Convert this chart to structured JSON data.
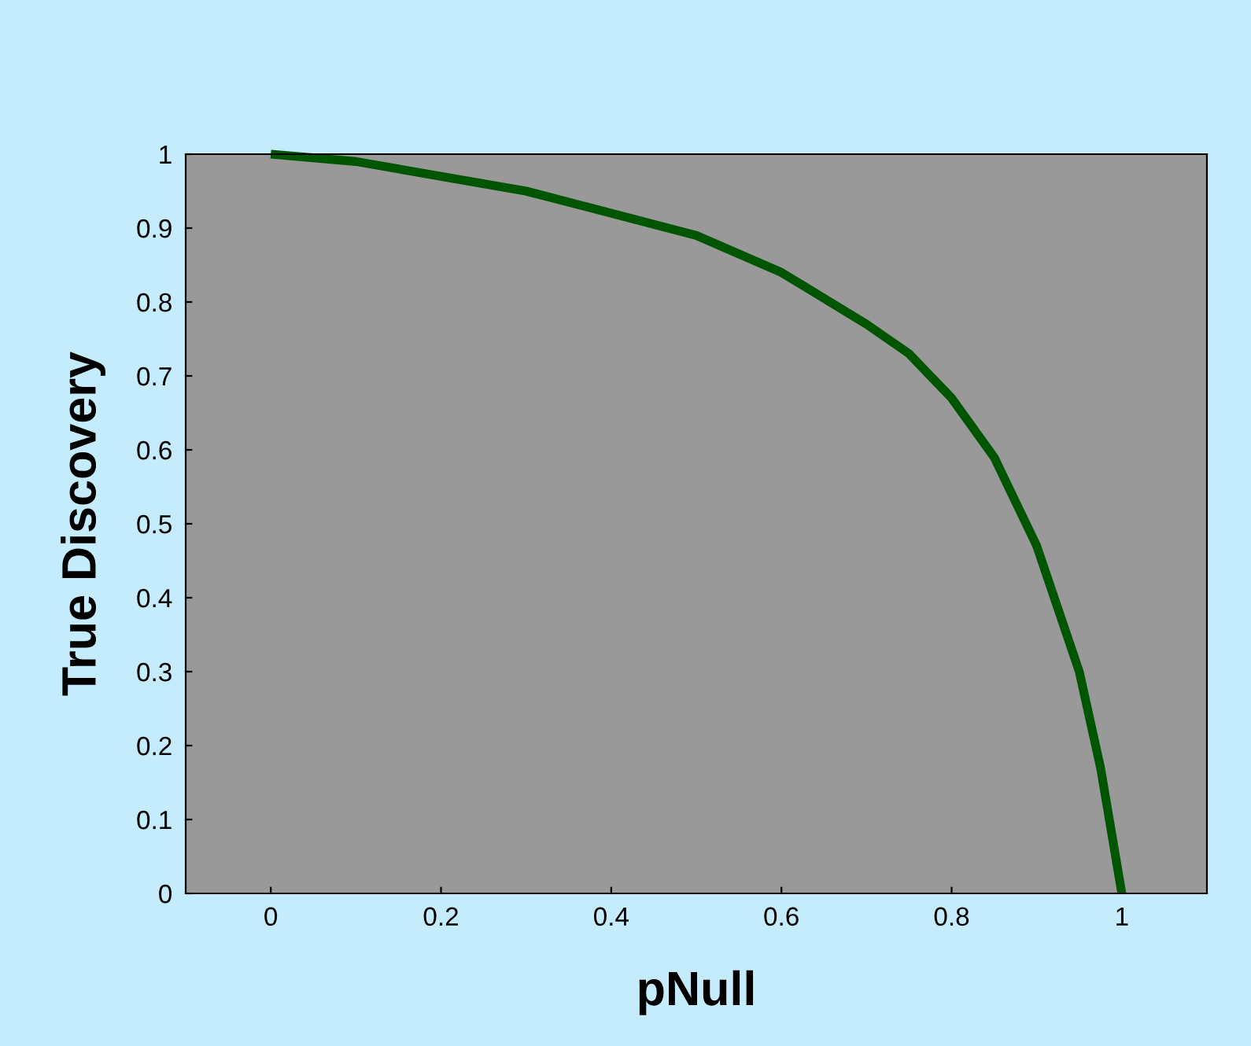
{
  "chart_data": {
    "type": "line",
    "xlabel": "pNull",
    "ylabel": "True Discovery",
    "x": [
      0,
      0.1,
      0.2,
      0.3,
      0.4,
      0.5,
      0.6,
      0.7,
      0.75,
      0.8,
      0.85,
      0.9,
      0.95,
      0.975,
      1
    ],
    "series": [
      {
        "color": "#005500",
        "values": [
          1,
          0.99,
          0.97,
          0.95,
          0.92,
          0.89,
          0.84,
          0.77,
          0.73,
          0.67,
          0.59,
          0.47,
          0.3,
          0.17,
          0
        ]
      }
    ],
    "xlim": [
      -0.1,
      1.1
    ],
    "xticks": [
      0,
      0.2,
      0.4,
      0.6,
      0.8,
      1
    ],
    "ylim": [
      0,
      1
    ],
    "yticks": [
      0,
      0.1,
      0.2,
      0.3,
      0.4,
      0.5,
      0.6,
      0.7,
      0.8,
      0.9,
      1
    ],
    "grid": false,
    "legend": false,
    "marker": "none",
    "line_style": "solid"
  }
}
